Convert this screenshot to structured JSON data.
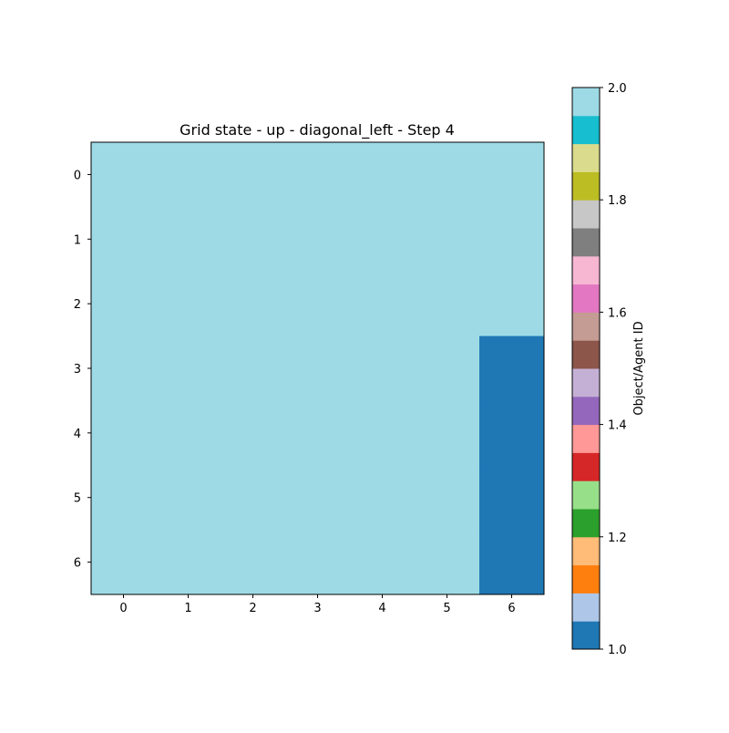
{
  "chart_data": {
    "type": "heatmap",
    "title": "Grid state - up - diagonal_left - Step 4",
    "x_ticks": [
      "0",
      "1",
      "2",
      "3",
      "4",
      "5",
      "6"
    ],
    "y_ticks": [
      "0",
      "1",
      "2",
      "3",
      "4",
      "5",
      "6"
    ],
    "grid": [
      [
        2,
        2,
        2,
        2,
        2,
        2,
        2
      ],
      [
        2,
        2,
        2,
        2,
        2,
        2,
        2
      ],
      [
        2,
        2,
        2,
        2,
        2,
        2,
        2
      ],
      [
        2,
        2,
        2,
        2,
        2,
        2,
        1
      ],
      [
        2,
        2,
        2,
        2,
        2,
        2,
        1
      ],
      [
        2,
        2,
        2,
        2,
        2,
        2,
        1
      ],
      [
        2,
        2,
        2,
        2,
        2,
        2,
        1
      ]
    ],
    "colorbar": {
      "label": "Object/Agent ID",
      "range": [
        1.0,
        2.0
      ],
      "ticks": [
        "1.0",
        "1.2",
        "1.4",
        "1.6",
        "1.8",
        "2.0"
      ],
      "tick_values": [
        1.0,
        1.2,
        1.4,
        1.6,
        1.8,
        2.0
      ],
      "colormap": [
        "#1f77b4",
        "#aec7e8",
        "#ff7f0e",
        "#ffbb78",
        "#2ca02c",
        "#98df8a",
        "#d62728",
        "#ff9896",
        "#9467bd",
        "#c5b0d5",
        "#8c564b",
        "#c49c94",
        "#e377c2",
        "#f7b6d2",
        "#7f7f7f",
        "#c7c7c7",
        "#bcbd22",
        "#dbdb8d",
        "#17becf",
        "#9edae5"
      ]
    },
    "grid_lines": false
  }
}
